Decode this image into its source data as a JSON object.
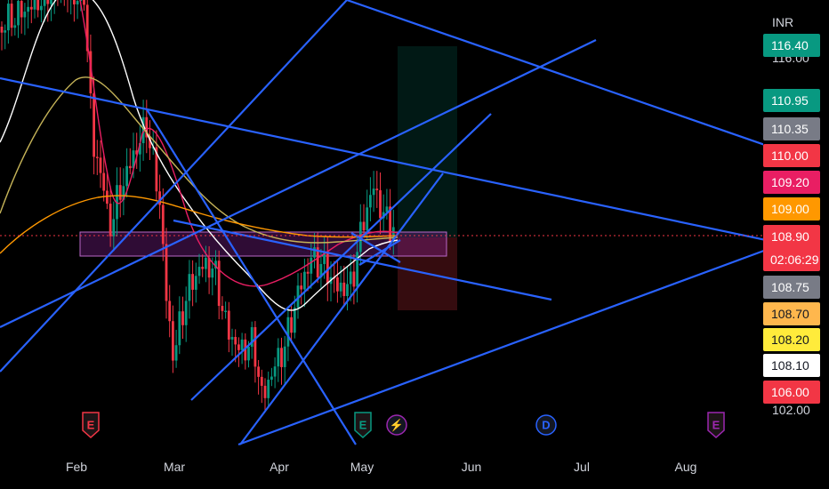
{
  "chart_data": {
    "type": "candlestick",
    "currency": "INR",
    "x_labels": [
      "Feb",
      "Mar",
      "Apr",
      "May",
      "Jun",
      "Jul",
      "Aug"
    ],
    "y_axis_ticks": [
      116.0,
      102.0
    ],
    "last_price": 108.9,
    "countdown": "02:06:29",
    "price_tags": [
      {
        "value": 116.4,
        "bg": "#089981",
        "fg": "#ffffff"
      },
      {
        "value": 110.95,
        "bg": "#089981",
        "fg": "#ffffff"
      },
      {
        "value": 110.35,
        "bg": "#787b86",
        "fg": "#ffffff"
      },
      {
        "value": 110.0,
        "bg": "#f23645",
        "fg": "#ffffff"
      },
      {
        "value": 109.2,
        "bg": "#e91e63",
        "fg": "#ffffff"
      },
      {
        "value": 109.0,
        "bg": "#ff9800",
        "fg": "#ffffff"
      },
      {
        "value": 108.9,
        "bg": "#f23645",
        "fg": "#ffffff"
      },
      {
        "value": 108.75,
        "bg": "#787b86",
        "fg": "#ffffff"
      },
      {
        "value": 108.7,
        "bg": "#ffb74d",
        "fg": "#131722"
      },
      {
        "value": 108.2,
        "bg": "#ffeb3b",
        "fg": "#131722"
      },
      {
        "value": 108.1,
        "bg": "#ffffff",
        "fg": "#131722"
      },
      {
        "value": 106.0,
        "bg": "#f23645",
        "fg": "#ffffff"
      }
    ],
    "events": [
      {
        "label": "E",
        "kind": "earnings",
        "color": "#f23645"
      },
      {
        "label": "E",
        "kind": "earnings",
        "color": "#089981"
      },
      {
        "label": "⚡",
        "kind": "split",
        "color": "#9c27b0"
      },
      {
        "label": "D",
        "kind": "dividend",
        "color": "#2962ff"
      },
      {
        "label": "E",
        "kind": "earnings",
        "color": "#9c27b0"
      }
    ],
    "colors": {
      "up": "#089981",
      "down": "#f23645",
      "trendline": "#2962ff",
      "sma_white": "#ffffff",
      "sma_red": "#e91e63",
      "sma_yellow": "#c5b358",
      "sma_orange": "#ff9800",
      "zone": "#9c27b0"
    }
  }
}
